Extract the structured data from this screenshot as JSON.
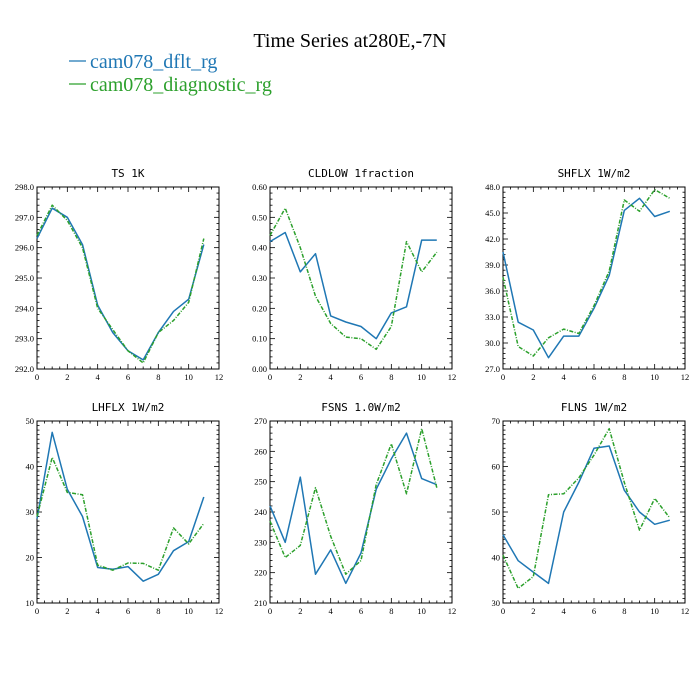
{
  "figure": {
    "title": "Time Series at280E,-7N",
    "legend": [
      {
        "label": "cam078_dflt_rg",
        "color": "#1f77b4"
      },
      {
        "label": "cam078_diagnostic_rg",
        "color": "#2ca02c"
      }
    ]
  },
  "chart_data": [
    {
      "type": "line",
      "title": "TS   1K",
      "xlim": [
        0,
        12
      ],
      "ylim": [
        292.0,
        298.0
      ],
      "xticks": [
        0,
        2,
        4,
        6,
        8,
        10,
        12
      ],
      "yticks": [
        "292.0",
        "293.0",
        "294.0",
        "295.0",
        "296.0",
        "297.0",
        "298.0"
      ],
      "x": [
        0,
        1,
        2,
        3,
        4,
        5,
        6,
        7,
        8,
        9,
        10,
        11
      ],
      "series": [
        {
          "name": "cam078_dflt_rg",
          "values": [
            296.3,
            297.3,
            297.0,
            296.1,
            294.1,
            293.2,
            292.6,
            292.3,
            293.2,
            293.9,
            294.3,
            296.1
          ]
        },
        {
          "name": "cam078_diagnostic_rg",
          "values": [
            296.4,
            297.4,
            296.9,
            296.0,
            294.0,
            293.3,
            292.6,
            292.2,
            293.2,
            293.6,
            294.2,
            296.3
          ]
        }
      ]
    },
    {
      "type": "line",
      "title": "CLDLOW   1fraction",
      "xlim": [
        0,
        12
      ],
      "ylim": [
        0.0,
        0.6
      ],
      "xticks": [
        0,
        2,
        4,
        6,
        8,
        10,
        12
      ],
      "yticks": [
        "0.00",
        "0.10",
        "0.20",
        "0.30",
        "0.40",
        "0.50",
        "0.60"
      ],
      "x": [
        0,
        1,
        2,
        3,
        4,
        5,
        6,
        7,
        8,
        9,
        10,
        11
      ],
      "series": [
        {
          "name": "cam078_dflt_rg",
          "values": [
            0.42,
            0.45,
            0.32,
            0.38,
            0.175,
            0.155,
            0.14,
            0.1,
            0.185,
            0.205,
            0.425,
            0.425
          ]
        },
        {
          "name": "cam078_diagnostic_rg",
          "values": [
            0.44,
            0.53,
            0.4,
            0.24,
            0.15,
            0.105,
            0.1,
            0.065,
            0.14,
            0.42,
            0.32,
            0.385
          ]
        }
      ]
    },
    {
      "type": "line",
      "title": "SHFLX   1W/m2",
      "xlim": [
        0,
        12
      ],
      "ylim": [
        27.0,
        48.0
      ],
      "xticks": [
        0,
        2,
        4,
        6,
        8,
        10,
        12
      ],
      "yticks": [
        "27.0",
        "30.0",
        "33.0",
        "36.0",
        "39.0",
        "42.0",
        "45.0",
        "48.0"
      ],
      "x": [
        0,
        1,
        2,
        3,
        4,
        5,
        6,
        7,
        8,
        9,
        10,
        11
      ],
      "series": [
        {
          "name": "cam078_dflt_rg",
          "values": [
            40.5,
            32.4,
            31.5,
            28.3,
            30.8,
            30.8,
            34.0,
            37.8,
            45.3,
            46.7,
            44.6,
            45.2
          ]
        },
        {
          "name": "cam078_diagnostic_rg",
          "values": [
            37.6,
            29.6,
            28.5,
            30.6,
            31.6,
            31.1,
            34.3,
            38.3,
            46.5,
            45.2,
            47.7,
            46.7
          ]
        }
      ]
    },
    {
      "type": "line",
      "title": "LHFLX   1W/m2",
      "xlim": [
        0,
        12
      ],
      "ylim": [
        10,
        50
      ],
      "xticks": [
        0,
        2,
        4,
        6,
        8,
        10,
        12
      ],
      "yticks": [
        "10",
        "20",
        "30",
        "40",
        "50"
      ],
      "x": [
        0,
        1,
        2,
        3,
        4,
        5,
        6,
        7,
        8,
        9,
        10,
        11
      ],
      "series": [
        {
          "name": "cam078_dflt_rg",
          "values": [
            28.5,
            47.5,
            35.0,
            29.0,
            17.8,
            17.4,
            18.0,
            14.8,
            16.3,
            21.5,
            23.5,
            33.3
          ]
        },
        {
          "name": "cam078_diagnostic_rg",
          "values": [
            29.0,
            42.0,
            34.3,
            33.8,
            18.3,
            17.2,
            18.8,
            18.7,
            17.2,
            26.5,
            23.0,
            27.5
          ]
        }
      ]
    },
    {
      "type": "line",
      "title": "FSNS   1.0W/m2",
      "xlim": [
        0,
        12
      ],
      "ylim": [
        210,
        270
      ],
      "xticks": [
        0,
        2,
        4,
        6,
        8,
        10,
        12
      ],
      "yticks": [
        "210",
        "220",
        "230",
        "240",
        "250",
        "260",
        "270"
      ],
      "x": [
        0,
        1,
        2,
        3,
        4,
        5,
        6,
        7,
        8,
        9,
        10,
        11
      ],
      "series": [
        {
          "name": "cam078_dflt_rg",
          "values": [
            242,
            230,
            251.5,
            219.5,
            227.5,
            216.5,
            226.5,
            247.5,
            257.5,
            266,
            251,
            249
          ]
        },
        {
          "name": "cam078_diagnostic_rg",
          "values": [
            237,
            225,
            229,
            248,
            232,
            219.5,
            224,
            249,
            262.5,
            246,
            267.5,
            248
          ]
        }
      ]
    },
    {
      "type": "line",
      "title": "FLNS   1W/m2",
      "xlim": [
        0,
        12
      ],
      "ylim": [
        30,
        70
      ],
      "xticks": [
        0,
        2,
        4,
        6,
        8,
        10,
        12
      ],
      "yticks": [
        "30",
        "40",
        "50",
        "60",
        "70"
      ],
      "x": [
        0,
        1,
        2,
        3,
        4,
        5,
        6,
        7,
        8,
        9,
        10,
        11
      ],
      "series": [
        {
          "name": "cam078_dflt_rg",
          "values": [
            45,
            39.3,
            36.8,
            34.3,
            50.0,
            56.5,
            64.0,
            64.5,
            54.8,
            50.0,
            47.3,
            48.2
          ]
        },
        {
          "name": "cam078_diagnostic_rg",
          "values": [
            40.5,
            33.2,
            35.8,
            53.8,
            54.0,
            57.5,
            62.5,
            68.3,
            56.5,
            46.0,
            53.0,
            48.7
          ]
        }
      ]
    }
  ]
}
